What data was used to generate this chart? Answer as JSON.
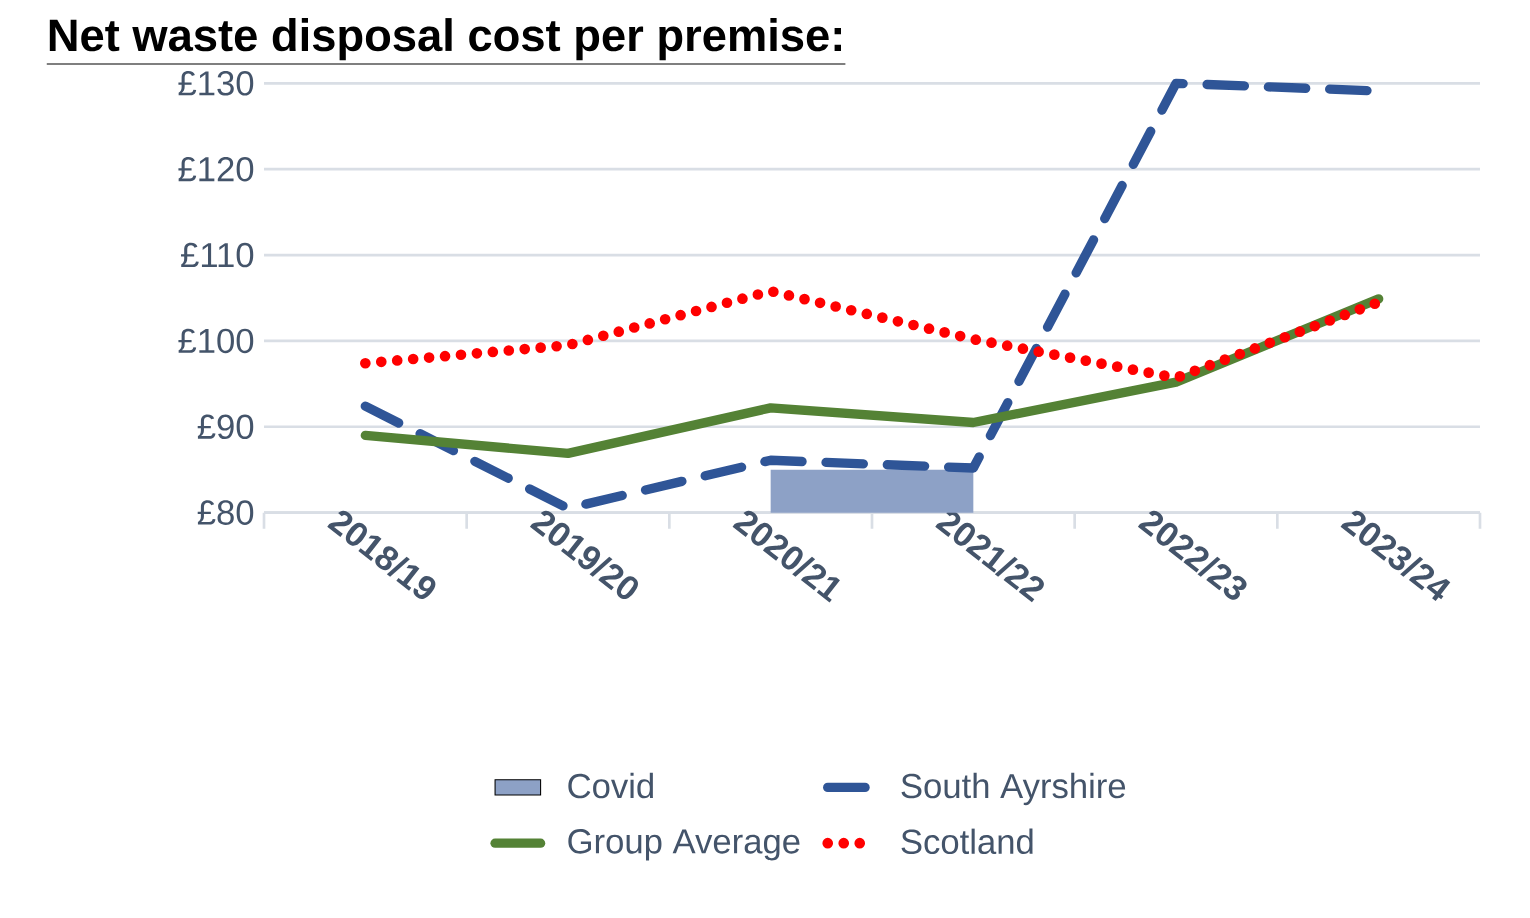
{
  "chart_data": {
    "type": "line",
    "title": "Net waste disposal cost per premise:",
    "categories": [
      "2018/19",
      "2019/20",
      "2020/21",
      "2021/22",
      "2022/23",
      "2023/24"
    ],
    "series": [
      {
        "name": "Covid",
        "type": "area",
        "color": "#8da1c6",
        "values": [
          null,
          null,
          85,
          85,
          null,
          null
        ]
      },
      {
        "name": "South Ayrshire",
        "color": "#2f5597",
        "line_style": "dashed",
        "values": [
          92.4,
          80.5,
          86.1,
          85.2,
          130,
          129.1
        ]
      },
      {
        "name": "Group Average",
        "color": "#548235",
        "line_style": "solid",
        "values": [
          89.0,
          86.9,
          92.2,
          90.5,
          95.2,
          104.9
        ]
      },
      {
        "name": "Scotland",
        "color": "#ff0000",
        "line_style": "dotted",
        "values": [
          97.4,
          99.5,
          105.8,
          100.2,
          95.7,
          104.5
        ]
      }
    ],
    "ylim": [
      80,
      130
    ],
    "yticks": [
      {
        "value": 80,
        "label": "£80"
      },
      {
        "value": 90,
        "label": "£90"
      },
      {
        "value": 100,
        "label": "£100"
      },
      {
        "value": 110,
        "label": "£110"
      },
      {
        "value": 120,
        "label": "£120"
      },
      {
        "value": 130,
        "label": "£130"
      }
    ],
    "grid": "y",
    "legend": "bottom",
    "marker": "none"
  }
}
